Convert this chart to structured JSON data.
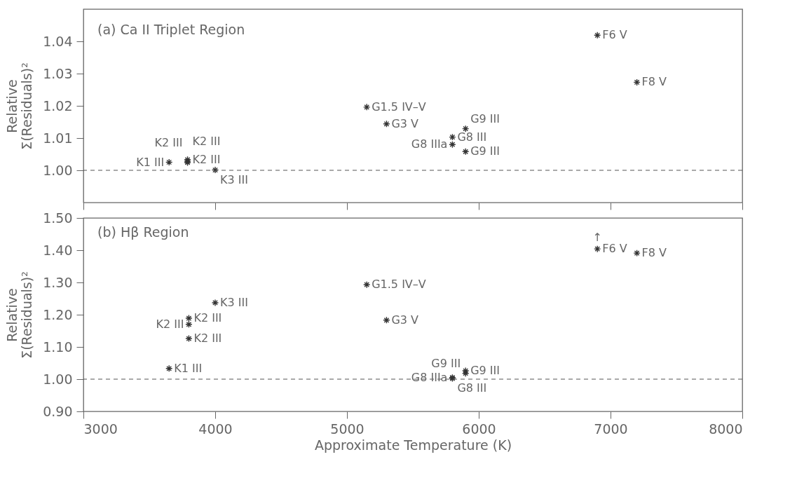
{
  "chart_data": [
    {
      "type": "scatter",
      "title": "(a) Ca II Triplet Region",
      "ylabel": "Relative\nΣ(Residuals)²",
      "marker": "cross",
      "tick_labels": "y",
      "xlim": [
        3000,
        8000
      ],
      "xticks": [
        3000,
        4000,
        5000,
        6000,
        7000,
        8000
      ],
      "ylim": [
        0.99,
        1.05
      ],
      "yticks": [
        {
          "value": 1.0,
          "label": "1.00"
        },
        {
          "value": 1.01,
          "label": "1.01"
        },
        {
          "value": 1.02,
          "label": "1.02"
        },
        {
          "value": 1.03,
          "label": "1.03"
        },
        {
          "value": 1.04,
          "label": "1.04"
        }
      ],
      "series": [
        {
          "color": "#333333",
          "x": [
            3650,
            3790,
            3790,
            3790,
            4000,
            5150,
            5300,
            5800,
            5800,
            5900,
            5900,
            6900,
            7200
          ],
          "values": [
            1.0025,
            1.0033,
            1.0028,
            1.0024,
            1.0001,
            1.0196,
            1.0144,
            1.0103,
            1.008,
            1.0129,
            1.0058,
            1.0419,
            1.0273
          ]
        }
      ],
      "ref_lines": [
        {
          "axis": "y",
          "value": 1.0,
          "line_style": "dashed",
          "color": "#555555"
        }
      ],
      "annotations": [
        {
          "text": "K1 III",
          "x": 3650,
          "y": 1.0025
        },
        {
          "text": "K2 III",
          "x": 3790,
          "y": 1.0033
        },
        {
          "text": "K2 III",
          "x": 3790,
          "y": 1.0028
        },
        {
          "text": "K2 III",
          "x": 3790,
          "y": 1.0024
        },
        {
          "text": "K3 III",
          "x": 4000,
          "y": 1.0001
        },
        {
          "text": "G1.5 IV–V",
          "x": 5150,
          "y": 1.0196
        },
        {
          "text": "G3 V",
          "x": 5300,
          "y": 1.0144
        },
        {
          "text": "G8 III",
          "x": 5800,
          "y": 1.0103
        },
        {
          "text": "G8 IIIa",
          "x": 5800,
          "y": 1.008
        },
        {
          "text": "G9 III",
          "x": 5900,
          "y": 1.0129
        },
        {
          "text": "G9 III",
          "x": 5900,
          "y": 1.0058
        },
        {
          "text": "F6 V",
          "x": 6900,
          "y": 1.0419
        },
        {
          "text": "F8 V",
          "x": 7200,
          "y": 1.0273
        }
      ]
    },
    {
      "type": "scatter",
      "title": "(b) Hβ Region",
      "xlabel": "Approximate Temperature (K)",
      "ylabel": "Relative\nΣ(Residuals)²",
      "marker": "cross",
      "xlim": [
        3000,
        8000
      ],
      "xticks": [
        3000,
        4000,
        5000,
        6000,
        7000,
        8000
      ],
      "ylim": [
        0.9,
        1.5
      ],
      "yticks": [
        {
          "value": 0.9,
          "label": "0.90"
        },
        {
          "value": 1.0,
          "label": "1.00"
        },
        {
          "value": 1.1,
          "label": "1.10"
        },
        {
          "value": 1.2,
          "label": "1.20"
        },
        {
          "value": 1.3,
          "label": "1.30"
        },
        {
          "value": 1.4,
          "label": "1.40"
        },
        {
          "value": 1.5,
          "label": "1.50"
        }
      ],
      "series": [
        {
          "color": "#333333",
          "x": [
            3650,
            3800,
            3800,
            3800,
            4000,
            5150,
            5300,
            5800,
            5800,
            5900,
            5900,
            6900,
            7200
          ],
          "values": [
            1.033,
            1.189,
            1.17,
            1.126,
            1.237,
            1.293,
            1.183,
            1.005,
            1.002,
            1.026,
            1.018,
            1.404,
            1.391
          ]
        }
      ],
      "ref_lines": [
        {
          "axis": "y",
          "value": 1.0,
          "line_style": "dashed",
          "color": "#555555"
        }
      ],
      "annotations": [
        {
          "text": "K1 III",
          "x": 3650,
          "y": 1.033
        },
        {
          "text": "K2 III",
          "x": 3800,
          "y": 1.189
        },
        {
          "text": "K2 III",
          "x": 3800,
          "y": 1.17
        },
        {
          "text": "K2 III",
          "x": 3800,
          "y": 1.126
        },
        {
          "text": "K3 III",
          "x": 4000,
          "y": 1.237
        },
        {
          "text": "G1.5 IV–V",
          "x": 5150,
          "y": 1.293
        },
        {
          "text": "G3 V",
          "x": 5300,
          "y": 1.183
        },
        {
          "text": "G8 IIIa",
          "x": 5800,
          "y": 1.005
        },
        {
          "text": "G8 III",
          "x": 5800,
          "y": 1.002
        },
        {
          "text": "G9 III",
          "x": 5900,
          "y": 1.026
        },
        {
          "text": "G9 III",
          "x": 5900,
          "y": 1.018
        },
        {
          "text": "↑",
          "x": 6900,
          "y": 1.404
        },
        {
          "text": "F6 V",
          "x": 6900,
          "y": 1.404
        },
        {
          "text": "F8 V",
          "x": 7200,
          "y": 1.391
        }
      ]
    }
  ]
}
